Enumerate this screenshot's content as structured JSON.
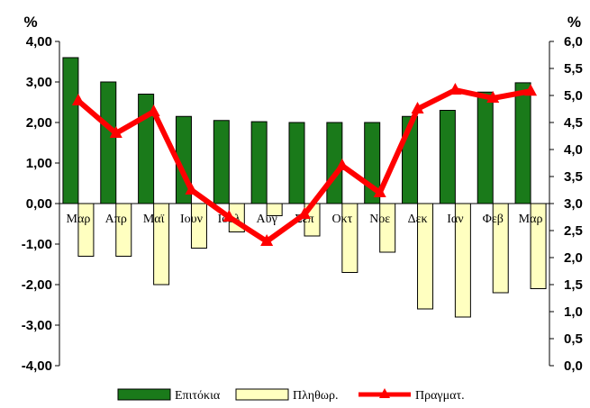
{
  "chart_data": {
    "type": "bar",
    "categories": [
      "Μαρ",
      "Απρ",
      "Μαϊ",
      "Ιουν",
      "Ιουλ",
      "Αυγ",
      "Σεπ",
      "Οκτ",
      "Νοε",
      "Δεκ",
      "Ιαν",
      "Φεβ",
      "Μαρ"
    ],
    "series": [
      {
        "name": "Επιτόκια",
        "kind": "bar",
        "axis": "left",
        "color": "#1a7a1a",
        "values": [
          3.6,
          3.0,
          2.7,
          2.15,
          2.05,
          2.02,
          2.0,
          2.0,
          2.0,
          2.15,
          2.3,
          2.75,
          2.98
        ]
      },
      {
        "name": "Πληθωρ.",
        "kind": "bar",
        "axis": "left",
        "color": "#ffffc0",
        "values": [
          -1.3,
          -1.3,
          -2.0,
          -1.1,
          -0.7,
          -0.3,
          -0.8,
          -1.7,
          -1.2,
          -2.6,
          -2.8,
          -2.2,
          -2.1
        ]
      },
      {
        "name": "Πραγματ.",
        "kind": "line",
        "axis": "right",
        "color": "#ff0000",
        "values": [
          4.9,
          4.3,
          4.7,
          3.25,
          2.75,
          2.3,
          2.8,
          3.7,
          3.2,
          4.75,
          5.1,
          4.95,
          5.08
        ]
      }
    ],
    "left_axis": {
      "unit": "%",
      "ylim": [
        -4,
        4
      ],
      "ticks": [
        "-4,00",
        "-3,00",
        "-2,00",
        "-1,00",
        "0,00",
        "1,00",
        "2,00",
        "3,00",
        "4,00"
      ]
    },
    "right_axis": {
      "unit": "%",
      "ylim": [
        0,
        6
      ],
      "ticks": [
        "0,0",
        "0,5",
        "1,0",
        "1,5",
        "2,0",
        "2,5",
        "3,0",
        "3,5",
        "4,0",
        "4,5",
        "5,0",
        "5,5",
        "6,0"
      ]
    },
    "grid": false,
    "legend_position": "bottom"
  }
}
